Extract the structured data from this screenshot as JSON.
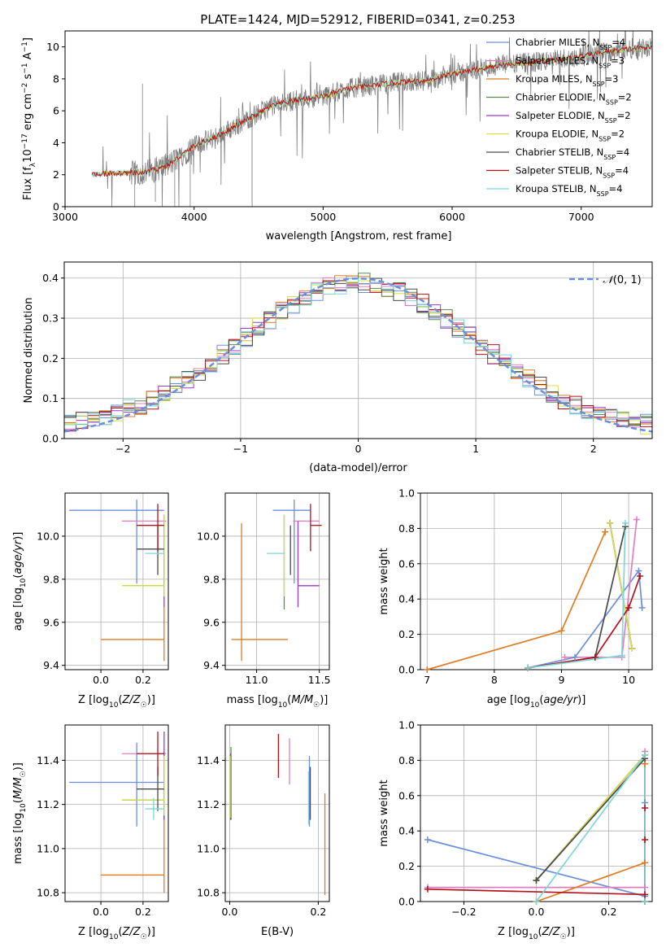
{
  "figure_title": "PLATE=1424, MJD=52912, FIBERID=0341, z=0.253",
  "colors": {
    "chabrier_miles": "#6a8fdc",
    "salpeter_miles": "#e07fbf",
    "kroupa_miles": "#e07b24",
    "chabrier_elodie": "#5a8a4a",
    "salpeter_elodie": "#9b3bc7",
    "kroupa_elodie": "#d6e04a",
    "chabrier_stelib": "#4a4a4a",
    "salpeter_stelib": "#b3121c",
    "kroupa_stelib": "#7ed6d6",
    "data_spectrum": "#808080",
    "grid": "#b0b0b0"
  },
  "chart_data": [
    {
      "id": "spectrum",
      "type": "line",
      "title": "PLATE=1424, MJD=52912, FIBERID=0341, z=0.253",
      "xlabel": "wavelength [Angstrom, rest frame]",
      "ylabel": "Flux [f_λ10^-17 erg cm^-2 s^-1 A^-1]",
      "xlim": [
        3000,
        7550
      ],
      "ylim": [
        0,
        11
      ],
      "xticks": [
        3000,
        4000,
        5000,
        6000,
        7000
      ],
      "yticks": [
        0,
        2,
        4,
        6,
        8,
        10
      ],
      "grid": false,
      "legend_position": "top-right",
      "legend": [
        {
          "label": "Chabrier MILES, N_SSP=4",
          "text": "Chabrier MILES, N",
          "n": "=4",
          "color_key": "chabrier_miles"
        },
        {
          "label": "Salpeter MILES, N_SSP=3",
          "text": "Salpeter MILES, N",
          "n": "=3",
          "color_key": "salpeter_miles"
        },
        {
          "label": "Kroupa MILES, N_SSP=3",
          "text": "Kroupa MILES, N",
          "n": "=3",
          "color_key": "kroupa_miles"
        },
        {
          "label": "Chabrier ELODIE, N_SSP=2",
          "text": "Chabrier ELODIE, N",
          "n": "=2",
          "color_key": "chabrier_elodie"
        },
        {
          "label": "Salpeter ELODIE, N_SSP=2",
          "text": "Salpeter ELODIE, N",
          "n": "=2",
          "color_key": "salpeter_elodie"
        },
        {
          "label": "Kroupa ELODIE, N_SSP=2",
          "text": "Kroupa ELODIE, N",
          "n": "=2",
          "color_key": "kroupa_elodie"
        },
        {
          "label": "Chabrier STELIB, N_SSP=4",
          "text": "Chabrier STELIB, N",
          "n": "=4",
          "color_key": "chabrier_stelib"
        },
        {
          "label": "Salpeter STELIB, N_SSP=4",
          "text": "Salpeter STELIB, N",
          "n": "=4",
          "color_key": "salpeter_stelib"
        },
        {
          "label": "Kroupa STELIB, N_SSP=4",
          "text": "Kroupa STELIB, N",
          "n": "=4",
          "color_key": "kroupa_stelib"
        }
      ],
      "data_trend": {
        "x": [
          3200,
          3400,
          3600,
          3800,
          4000,
          4200,
          4400,
          4600,
          4800,
          5000,
          5200,
          5400,
          5600,
          5800,
          6000,
          6200,
          6400,
          6600,
          6800,
          7000,
          7200,
          7400,
          7550
        ],
        "y": [
          2.0,
          2.1,
          2.1,
          2.6,
          3.8,
          4.5,
          5.4,
          6.3,
          6.7,
          6.9,
          7.4,
          7.6,
          7.8,
          7.9,
          8.3,
          8.6,
          8.9,
          9.0,
          9.2,
          9.4,
          9.7,
          9.9,
          10.0
        ]
      }
    },
    {
      "id": "residuals",
      "type": "line",
      "xlabel": "(data-model)/error",
      "ylabel": "Normed distribution",
      "xlim": [
        -2.5,
        2.5
      ],
      "ylim": [
        0,
        0.44
      ],
      "xticks": [
        -2,
        -1,
        0,
        1,
        2
      ],
      "yticks": [
        0.0,
        0.1,
        0.2,
        0.3,
        0.4
      ],
      "grid": true,
      "legend_position": "top-right",
      "reference_curve": {
        "label": "N(0,1)",
        "style": "dashed",
        "mean": 0,
        "sigma": 1
      }
    },
    {
      "id": "age_vs_Z",
      "type": "scatter",
      "xlabel": "Z [log10(Z/Z☉)]",
      "ylabel": "age  [log10(age/yr)]",
      "xlim": [
        -0.17,
        0.32
      ],
      "ylim": [
        9.38,
        10.2
      ],
      "xticks": [
        0.0,
        0.2
      ],
      "yticks": [
        9.4,
        9.6,
        9.8,
        10.0
      ],
      "grid": true,
      "points": [
        {
          "model": "chabrier_miles",
          "x": 0.17,
          "xerr": [
            0.32,
            0.13
          ],
          "y": 10.12,
          "yerr": [
            0.34,
            0.05
          ]
        },
        {
          "model": "salpeter_miles",
          "x": 0.22,
          "xerr": [
            0.12,
            0.09
          ],
          "y": 10.07,
          "yerr": [
            0.0,
            0.0
          ]
        },
        {
          "model": "kroupa_miles",
          "x": 0.3,
          "xerr": [
            0.3,
            0.0
          ],
          "y": 9.52,
          "yerr": [
            0.1,
            0.15
          ]
        },
        {
          "model": "chabrier_elodie",
          "x": 0.3,
          "xerr": [
            0.2,
            0.0
          ],
          "y": 9.77,
          "yerr": [
            0.0,
            0.33
          ]
        },
        {
          "model": "salpeter_elodie",
          "x": 0.3,
          "xerr": [
            0.0,
            0.0
          ],
          "y": 9.77,
          "yerr": [
            0.1,
            0.3
          ]
        },
        {
          "model": "kroupa_elodie",
          "x": 0.3,
          "xerr": [
            0.2,
            0.0
          ],
          "y": 9.77,
          "yerr": [
            0.05,
            0.33
          ]
        },
        {
          "model": "chabrier_stelib",
          "x": 0.27,
          "xerr": [
            0.1,
            0.03
          ],
          "y": 9.94,
          "yerr": [
            0.12,
            0.11
          ]
        },
        {
          "model": "salpeter_stelib",
          "x": 0.27,
          "xerr": [
            0.1,
            0.03
          ],
          "y": 10.05,
          "yerr": [
            0.12,
            0.1
          ]
        },
        {
          "model": "kroupa_stelib",
          "x": 0.25,
          "xerr": [
            0.04,
            0.05
          ],
          "y": 9.92,
          "yerr": [
            0.0,
            0.0
          ]
        }
      ]
    },
    {
      "id": "age_vs_mass",
      "type": "scatter",
      "xlabel": "mass [log10(M/M☉)]",
      "ylabel": "",
      "xlim": [
        10.75,
        11.58
      ],
      "ylim": [
        9.38,
        10.2
      ],
      "xticks": [
        11.0,
        11.5
      ],
      "yticks": [
        9.4,
        9.6,
        9.8,
        10.0
      ],
      "grid": true,
      "points": [
        {
          "model": "chabrier_miles",
          "x": 11.3,
          "xerr": [
            0.17,
            0.13
          ],
          "y": 10.12,
          "yerr": [
            0.34,
            0.05
          ]
        },
        {
          "model": "salpeter_miles",
          "x": 11.43,
          "xerr": [
            0.14,
            0.07
          ],
          "y": 10.07,
          "yerr": [
            0.0,
            0.0
          ]
        },
        {
          "model": "kroupa_miles",
          "x": 10.88,
          "xerr": [
            0.08,
            0.37
          ],
          "y": 9.52,
          "yerr": [
            0.1,
            0.54
          ]
        },
        {
          "model": "chabrier_elodie",
          "x": 11.22,
          "xerr": [
            0.0,
            0.0
          ],
          "y": 9.77,
          "yerr": [
            0.11,
            0.33
          ]
        },
        {
          "model": "salpeter_elodie",
          "x": 11.33,
          "xerr": [
            0.0,
            0.17
          ],
          "y": 9.77,
          "yerr": [
            0.1,
            0.3
          ]
        },
        {
          "model": "kroupa_elodie",
          "x": 11.22,
          "xerr": [
            0.0,
            0.0
          ],
          "y": 9.77,
          "yerr": [
            0.05,
            0.33
          ]
        },
        {
          "model": "chabrier_stelib",
          "x": 11.27,
          "xerr": [
            0.0,
            0.0
          ],
          "y": 9.94,
          "yerr": [
            0.12,
            0.11
          ]
        },
        {
          "model": "salpeter_stelib",
          "x": 11.43,
          "xerr": [
            0.0,
            0.09
          ],
          "y": 10.05,
          "yerr": [
            0.12,
            0.1
          ]
        },
        {
          "model": "kroupa_stelib",
          "x": 11.18,
          "xerr": [
            0.1,
            0.04
          ],
          "y": 9.92,
          "yerr": [
            0.0,
            0.0
          ]
        }
      ]
    },
    {
      "id": "mass_weight_vs_age",
      "type": "line",
      "xlabel": "age  [log10(age/yr)]",
      "ylabel": "mass weight",
      "xlim": [
        6.9,
        10.35
      ],
      "ylim": [
        0,
        1.0
      ],
      "xticks": [
        7,
        8,
        9,
        10
      ],
      "yticks": [
        0.0,
        0.2,
        0.4,
        0.6,
        0.8,
        1.0
      ],
      "grid": true,
      "series": [
        {
          "model": "chabrier_miles",
          "x": [
            8.5,
            9.2,
            10.15,
            10.2
          ],
          "y": [
            0.01,
            0.07,
            0.56,
            0.35
          ]
        },
        {
          "model": "salpeter_miles",
          "x": [
            9.05,
            9.9,
            10.12
          ],
          "y": [
            0.07,
            0.07,
            0.85
          ]
        },
        {
          "model": "kroupa_miles",
          "x": [
            7.0,
            9.0,
            9.65
          ],
          "y": [
            0.0,
            0.22,
            0.78
          ]
        },
        {
          "model": "chabrier_elodie",
          "x": [
            9.72,
            10.05
          ],
          "y": [
            0.83,
            0.12
          ]
        },
        {
          "model": "salpeter_elodie",
          "x": [
            9.72,
            10.05
          ],
          "y": [
            0.83,
            0.12
          ]
        },
        {
          "model": "kroupa_elodie",
          "x": [
            9.72,
            10.05
          ],
          "y": [
            0.83,
            0.12
          ]
        },
        {
          "model": "chabrier_stelib",
          "x": [
            8.5,
            9.5,
            9.95
          ],
          "y": [
            0.01,
            0.07,
            0.81
          ]
        },
        {
          "model": "salpeter_stelib",
          "x": [
            8.5,
            9.5,
            10.0,
            10.17
          ],
          "y": [
            0.01,
            0.07,
            0.35,
            0.53
          ]
        },
        {
          "model": "kroupa_stelib",
          "x": [
            8.5,
            9.9,
            9.95
          ],
          "y": [
            0.01,
            0.08,
            0.83
          ]
        }
      ]
    },
    {
      "id": "mass_vs_Z",
      "type": "scatter",
      "xlabel": "Z [log10(Z/Z☉)]",
      "ylabel": "mass [log10(M/M☉)]",
      "xlim": [
        -0.17,
        0.32
      ],
      "ylim": [
        10.76,
        11.56
      ],
      "xticks": [
        0.0,
        0.2
      ],
      "yticks": [
        10.8,
        11.0,
        11.2,
        11.4
      ],
      "grid": true,
      "points": [
        {
          "model": "chabrier_miles",
          "x": 0.17,
          "xerr": [
            0.32,
            0.13
          ],
          "y": 11.3,
          "yerr": [
            0.2,
            0.18
          ]
        },
        {
          "model": "salpeter_miles",
          "x": 0.22,
          "xerr": [
            0.12,
            0.09
          ],
          "y": 11.43,
          "yerr": [
            0.0,
            0.0
          ]
        },
        {
          "model": "kroupa_miles",
          "x": 0.3,
          "xerr": [
            0.3,
            0.0
          ],
          "y": 10.88,
          "yerr": [
            0.08,
            0.37
          ]
        },
        {
          "model": "chabrier_elodie",
          "x": 0.3,
          "xerr": [
            0.2,
            0.0
          ],
          "y": 11.22,
          "yerr": [
            0.07,
            0.2
          ]
        },
        {
          "model": "salpeter_elodie",
          "x": 0.3,
          "xerr": [
            0.0,
            0.0
          ],
          "y": 11.33,
          "yerr": [
            0.2,
            0.2
          ]
        },
        {
          "model": "kroupa_elodie",
          "x": 0.3,
          "xerr": [
            0.2,
            0.0
          ],
          "y": 11.22,
          "yerr": [
            0.07,
            0.2
          ]
        },
        {
          "model": "chabrier_stelib",
          "x": 0.27,
          "xerr": [
            0.1,
            0.03
          ],
          "y": 11.27,
          "yerr": [
            0.1,
            0.1
          ]
        },
        {
          "model": "salpeter_stelib",
          "x": 0.27,
          "xerr": [
            0.1,
            0.03
          ],
          "y": 11.43,
          "yerr": [
            0.1,
            0.1
          ]
        },
        {
          "model": "kroupa_stelib",
          "x": 0.25,
          "xerr": [
            0.04,
            0.05
          ],
          "y": 11.18,
          "yerr": [
            0.05,
            0.05
          ]
        }
      ]
    },
    {
      "id": "mass_vs_ebv",
      "type": "scatter",
      "xlabel": "E(B-V)",
      "ylabel": "",
      "xlim": [
        -0.01,
        0.225
      ],
      "ylim": [
        10.76,
        11.56
      ],
      "xticks": [
        0.0,
        0.2
      ],
      "yticks": [
        10.8,
        11.0,
        11.2,
        11.4
      ],
      "grid": true,
      "points": [
        {
          "model": "chabrier_miles",
          "x": 0.18,
          "xerr": [
            0,
            0
          ],
          "y": 11.3,
          "yerr": [
            0.2,
            0.12
          ]
        },
        {
          "model": "salpeter_miles",
          "x": 0.135,
          "xerr": [
            0,
            0
          ],
          "y": 11.4,
          "yerr": [
            0.11,
            0.1
          ]
        },
        {
          "model": "kroupa_miles",
          "x": 0.215,
          "xerr": [
            0,
            0
          ],
          "y": 11.0,
          "yerr": [
            0.21,
            0.25
          ]
        },
        {
          "model": "chabrier_elodie",
          "x": 0.003,
          "xerr": [
            0,
            0
          ],
          "y": 11.3,
          "yerr": [
            0.17,
            0.16
          ]
        },
        {
          "model": "salpeter_elodie",
          "x": 0.002,
          "xerr": [
            0,
            0
          ],
          "y": 11.33,
          "yerr": [
            0.2,
            0.1
          ]
        },
        {
          "model": "kroupa_elodie",
          "x": 0.001,
          "xerr": [
            0,
            0
          ],
          "y": 11.3,
          "yerr": [
            0.16,
            0.12
          ]
        },
        {
          "model": "chabrier_stelib",
          "x": 0.182,
          "xerr": [
            0,
            0
          ],
          "y": 11.25,
          "yerr": [
            0.12,
            0.12
          ]
        },
        {
          "model": "salpeter_stelib",
          "x": 0.11,
          "xerr": [
            0,
            0
          ],
          "y": 11.42,
          "yerr": [
            0.1,
            0.1
          ]
        },
        {
          "model": "kroupa_stelib",
          "x": 0.178,
          "xerr": [
            0,
            0
          ],
          "y": 11.25,
          "yerr": [
            0.14,
            0.1
          ]
        }
      ]
    },
    {
      "id": "mass_weight_vs_Z",
      "type": "line",
      "xlabel": "Z [log10(Z/Z☉)]",
      "ylabel": "mass weight",
      "xlim": [
        -0.32,
        0.32
      ],
      "ylim": [
        0,
        1.0
      ],
      "xticks": [
        -0.2,
        0.0,
        0.2
      ],
      "yticks": [
        0.0,
        0.2,
        0.4,
        0.6,
        0.8,
        1.0
      ],
      "grid": true,
      "series": [
        {
          "model": "chabrier_miles",
          "x": [
            -0.3,
            0.3,
            0.3,
            0.3
          ],
          "y": [
            0.35,
            0.03,
            0.56,
            0.0
          ]
        },
        {
          "model": "salpeter_miles",
          "x": [
            -0.3,
            0.3,
            0.3
          ],
          "y": [
            0.08,
            0.08,
            0.85
          ]
        },
        {
          "model": "kroupa_miles",
          "x": [
            0.0,
            0.3,
            0.3
          ],
          "y": [
            0.0,
            0.22,
            0.78
          ]
        },
        {
          "model": "chabrier_elodie",
          "x": [
            0.0,
            0.3,
            0.3
          ],
          "y": [
            0.12,
            0.83,
            0.0
          ]
        },
        {
          "model": "salpeter_elodie",
          "x": [
            0.0,
            0.3,
            0.3
          ],
          "y": [
            0.12,
            0.83,
            0.0
          ]
        },
        {
          "model": "kroupa_elodie",
          "x": [
            0.0,
            0.3,
            0.3
          ],
          "y": [
            0.12,
            0.83,
            0.0
          ]
        },
        {
          "model": "chabrier_stelib",
          "x": [
            0.0,
            0.3,
            0.3
          ],
          "y": [
            0.12,
            0.81,
            0.0
          ]
        },
        {
          "model": "salpeter_stelib",
          "x": [
            -0.3,
            0.3,
            0.3,
            0.3
          ],
          "y": [
            0.07,
            0.04,
            0.35,
            0.53
          ]
        },
        {
          "model": "kroupa_stelib",
          "x": [
            0.0,
            0.3,
            0.3
          ],
          "y": [
            0.0,
            0.83,
            0.0
          ]
        }
      ]
    }
  ]
}
